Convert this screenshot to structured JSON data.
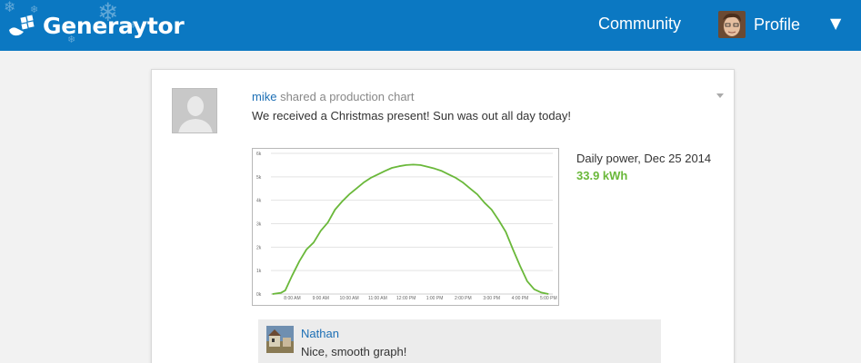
{
  "header": {
    "brand": "Generaytor",
    "nav_community": "Community",
    "nav_profile": "Profile",
    "menu_caret": "▼"
  },
  "post": {
    "author": "mike",
    "action": "shared a production chart",
    "text": "We received a Christmas present! Sun was out all day today!",
    "chart_title": "Daily power, Dec 25 2014",
    "chart_value": "33.9 kWh"
  },
  "comment": {
    "author": "Nathan",
    "text": "Nice, smooth graph!"
  },
  "colors": {
    "header_bg": "#0b78c2",
    "link": "#1c6fb5",
    "line": "#6ab83a"
  },
  "chart_data": {
    "type": "line",
    "title": "",
    "xlabel": "",
    "ylabel": "",
    "x_ticks": [
      "8:00 AM",
      "9:00 AM",
      "10:00 AM",
      "11:00 AM",
      "12:00 PM",
      "1:00 PM",
      "2:00 PM",
      "3:00 PM",
      "4:00 PM",
      "5:00 PM"
    ],
    "y_ticks": [
      "0k",
      "1k",
      "2k",
      "3k",
      "4k",
      "5k",
      "6k"
    ],
    "ylim": [
      0,
      6000
    ],
    "xlim_hours": [
      7.25,
      17.15
    ],
    "grid": true,
    "series": [
      {
        "x": [
          7.3,
          7.6,
          7.75,
          8.0,
          8.25,
          8.5,
          8.75,
          9.0,
          9.25,
          9.5,
          9.75,
          10.0,
          10.25,
          10.5,
          10.75,
          11.0,
          11.25,
          11.5,
          11.75,
          12.0,
          12.25,
          12.5,
          12.75,
          13.0,
          13.25,
          13.5,
          13.75,
          14.0,
          14.25,
          14.5,
          14.75,
          15.0,
          15.25,
          15.5,
          15.75,
          16.0,
          16.25,
          16.5,
          16.75,
          17.0
        ],
        "y": [
          0,
          50,
          150,
          800,
          1400,
          1900,
          2200,
          2700,
          3050,
          3600,
          3950,
          4250,
          4500,
          4750,
          4950,
          5100,
          5250,
          5380,
          5450,
          5500,
          5520,
          5500,
          5430,
          5350,
          5250,
          5100,
          4950,
          4750,
          4500,
          4250,
          3900,
          3600,
          3150,
          2650,
          1900,
          1200,
          550,
          200,
          60,
          0
        ]
      }
    ]
  }
}
